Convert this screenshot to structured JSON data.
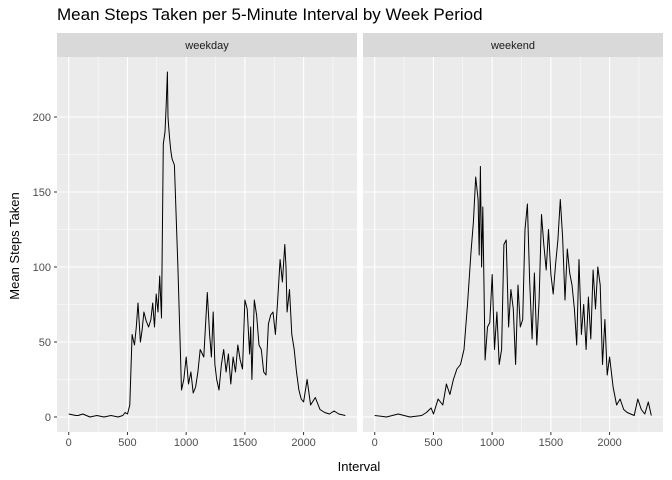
{
  "chart_data": {
    "type": "line",
    "title": "Mean Steps Taken per 5-Minute Interval by Week Period",
    "xlabel": "Interval",
    "ylabel": "Mean Steps Taken",
    "xlim": [
      -100,
      2455
    ],
    "ylim": [
      -10,
      240
    ],
    "x_ticks": [
      0,
      500,
      1000,
      1500,
      2000
    ],
    "y_ticks": [
      0,
      50,
      100,
      150,
      200
    ],
    "grid": true,
    "legend": "none",
    "colors": {
      "line": "#000000",
      "panel_bg": "#ebebeb",
      "strip_bg": "#d9d9d9",
      "grid": "#ffffff"
    },
    "facets": [
      {
        "name": "weekday",
        "x": [
          0,
          60,
          80,
          120,
          180,
          240,
          300,
          360,
          420,
          460,
          480,
          500,
          520,
          540,
          560,
          575,
          590,
          610,
          625,
          640,
          660,
          680,
          700,
          715,
          730,
          745,
          760,
          775,
          790,
          805,
          820,
          830,
          840,
          845,
          850,
          860,
          870,
          880,
          900,
          930,
          960,
          980,
          1000,
          1020,
          1040,
          1060,
          1080,
          1100,
          1120,
          1150,
          1180,
          1200,
          1215,
          1230,
          1245,
          1260,
          1280,
          1300,
          1320,
          1340,
          1360,
          1380,
          1400,
          1420,
          1440,
          1460,
          1480,
          1500,
          1520,
          1540,
          1550,
          1560,
          1580,
          1600,
          1620,
          1640,
          1660,
          1680,
          1700,
          1720,
          1740,
          1760,
          1780,
          1800,
          1820,
          1840,
          1850,
          1860,
          1880,
          1900,
          1920,
          1940,
          1960,
          1980,
          2000,
          2030,
          2060,
          2100,
          2140,
          2180,
          2220,
          2260,
          2300,
          2355
        ],
        "y": [
          2,
          1,
          1,
          2,
          0,
          1,
          0,
          1,
          0,
          1,
          3,
          2,
          8,
          55,
          48,
          60,
          76,
          50,
          58,
          70,
          64,
          60,
          65,
          76,
          60,
          82,
          70,
          94,
          66,
          182,
          190,
          208,
          230,
          200,
          195,
          185,
          177,
          172,
          168,
          100,
          18,
          25,
          40,
          22,
          30,
          16,
          20,
          30,
          45,
          40,
          83,
          55,
          40,
          70,
          35,
          25,
          18,
          35,
          45,
          30,
          42,
          22,
          40,
          30,
          48,
          38,
          32,
          78,
          72,
          42,
          60,
          25,
          78,
          68,
          48,
          45,
          30,
          28,
          62,
          68,
          70,
          55,
          78,
          105,
          90,
          115,
          100,
          70,
          85,
          55,
          45,
          30,
          18,
          12,
          10,
          25,
          8,
          13,
          5,
          3,
          2,
          4,
          2,
          1
        ]
      },
      {
        "name": "weekend",
        "x": [
          0,
          100,
          200,
          300,
          400,
          440,
          480,
          500,
          540,
          580,
          610,
          640,
          670,
          700,
          730,
          760,
          790,
          820,
          840,
          860,
          880,
          890,
          900,
          910,
          920,
          940,
          960,
          980,
          1000,
          1020,
          1040,
          1060,
          1080,
          1100,
          1120,
          1140,
          1160,
          1180,
          1200,
          1220,
          1240,
          1260,
          1280,
          1300,
          1320,
          1340,
          1360,
          1380,
          1400,
          1420,
          1440,
          1460,
          1480,
          1500,
          1520,
          1540,
          1560,
          1580,
          1600,
          1620,
          1640,
          1660,
          1680,
          1700,
          1720,
          1740,
          1760,
          1780,
          1800,
          1820,
          1840,
          1860,
          1880,
          1900,
          1920,
          1940,
          1960,
          1980,
          2000,
          2030,
          2060,
          2090,
          2120,
          2150,
          2180,
          2210,
          2240,
          2270,
          2300,
          2330,
          2355
        ],
        "y": [
          1,
          0,
          2,
          0,
          1,
          3,
          6,
          2,
          12,
          8,
          22,
          15,
          25,
          32,
          35,
          45,
          75,
          110,
          130,
          160,
          145,
          108,
          167,
          100,
          140,
          38,
          60,
          63,
          95,
          45,
          70,
          35,
          45,
          115,
          118,
          60,
          85,
          72,
          35,
          88,
          60,
          65,
          125,
          142,
          90,
          52,
          96,
          48,
          78,
          135,
          115,
          98,
          125,
          95,
          82,
          102,
          118,
          145,
          120,
          78,
          112,
          96,
          88,
          72,
          48,
          105,
          55,
          75,
          45,
          80,
          52,
          98,
          72,
          100,
          88,
          35,
          65,
          28,
          40,
          20,
          8,
          12,
          5,
          3,
          2,
          1,
          12,
          5,
          2,
          10,
          1
        ]
      }
    ]
  }
}
